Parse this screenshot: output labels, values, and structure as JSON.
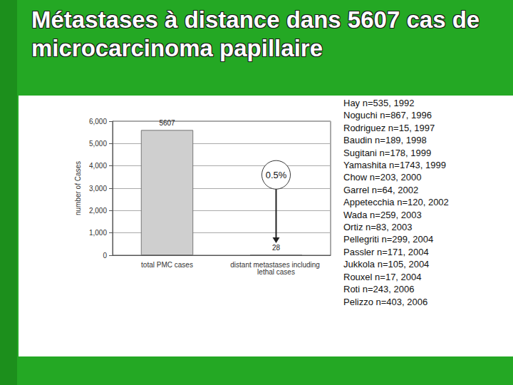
{
  "chart_data": {
    "type": "bar",
    "title": "Métastases à distance dans 5607 cas de microcarcinoma papillaire",
    "ylabel": "number of Cases",
    "categories": [
      "total PMC cases",
      "distant metastases including lethal cases"
    ],
    "values": [
      5607,
      28
    ],
    "color": "#cfcfcf",
    "ylim": [
      0,
      6000
    ],
    "yticks": [
      0,
      1000,
      2000,
      3000,
      4000,
      5000,
      6000
    ],
    "grid": true,
    "data_labels": true,
    "annotations": [
      "0.5%"
    ],
    "sources": [
      "Hay n=535, 1992",
      "Noguchi n=867, 1996",
      "Rodriguez n=15, 1997",
      "Baudin n=189, 1998",
      "Sugitani n=178, 1999",
      "Yamashita n=1743, 1999",
      "Chow n=203, 2000",
      "Garrel n=64, 2002",
      "Appetecchia n=120, 2002",
      "Wada n=259, 2003",
      "Ortiz n=83, 2003",
      "Pellegriti n=299, 2004",
      "Passler n=171, 2004",
      "Jukkola n=105, 2004",
      "Rouxel n=17, 2004",
      "Roti n=243, 2006",
      "Pelizzo n=403, 2006"
    ]
  }
}
